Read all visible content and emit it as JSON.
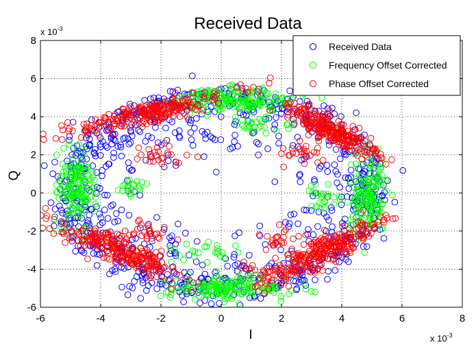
{
  "chart_data": {
    "type": "scatter",
    "title": "Received Data",
    "xlabel": "I",
    "ylabel": "Q",
    "x_multiplier": "x 10",
    "y_multiplier": "x 10",
    "multiplier_exponent": "-3",
    "xlim": [
      -6,
      8
    ],
    "ylim": [
      -6,
      8
    ],
    "xticks": [
      "-6",
      "-4",
      "-2",
      "0",
      "2",
      "4",
      "6",
      "8"
    ],
    "yticks": [
      "-6",
      "-4",
      "-2",
      "0",
      "2",
      "4",
      "6",
      "8"
    ],
    "grid": true,
    "legend_position": "top-right",
    "marker": "open-circle",
    "series": [
      {
        "name": "Received Data",
        "color": "#0000ff",
        "clusters": [
          {
            "shape": "ring",
            "cx": 0,
            "cy": 0,
            "rx": 5.0,
            "ry": 5.0,
            "spread": 0.45,
            "count": 700
          },
          {
            "shape": "ring",
            "cx": 0,
            "cy": 0,
            "rx": 3.8,
            "ry": 3.4,
            "spread": 0.7,
            "count": 220
          }
        ]
      },
      {
        "name": "Frequency Offset Corrected",
        "color": "#00ff00",
        "clusters": [
          {
            "shape": "blob",
            "cx": 0.5,
            "cy": 4.9,
            "sx": 1.0,
            "sy": 0.3,
            "angle": 0,
            "count": 170
          },
          {
            "shape": "blob",
            "cx": 0.2,
            "cy": -5.0,
            "sx": 1.0,
            "sy": 0.3,
            "angle": 0,
            "count": 170
          },
          {
            "shape": "blob",
            "cx": -4.8,
            "cy": 0.3,
            "sx": 0.3,
            "sy": 1.0,
            "angle": 0,
            "count": 150
          },
          {
            "shape": "blob",
            "cx": 4.9,
            "cy": -0.1,
            "sx": 0.3,
            "sy": 1.0,
            "angle": 0,
            "count": 150
          },
          {
            "shape": "blob",
            "cx": 1.2,
            "cy": 3.5,
            "sx": 0.6,
            "sy": 0.25,
            "angle": 0,
            "count": 30
          },
          {
            "shape": "blob",
            "cx": -3.0,
            "cy": 0.3,
            "sx": 0.3,
            "sy": 0.3,
            "angle": 0,
            "count": 20
          },
          {
            "shape": "blob",
            "cx": -0.5,
            "cy": -3.2,
            "sx": 0.6,
            "sy": 0.3,
            "angle": 0,
            "count": 25
          },
          {
            "shape": "blob",
            "cx": 3.4,
            "cy": -0.2,
            "sx": 0.4,
            "sy": 0.4,
            "angle": 0,
            "count": 25
          }
        ]
      },
      {
        "name": "Phase Offset Corrected",
        "color": "#ff0000",
        "clusters": [
          {
            "shape": "blob",
            "cx": -2.4,
            "cy": 4.2,
            "sx": 1.4,
            "sy": 0.25,
            "angle": 20,
            "count": 240
          },
          {
            "shape": "blob",
            "cx": 3.6,
            "cy": 3.3,
            "sx": 1.1,
            "sy": 0.3,
            "angle": -40,
            "count": 240
          },
          {
            "shape": "blob",
            "cx": -3.4,
            "cy": -3.0,
            "sx": 1.2,
            "sy": 0.3,
            "angle": -35,
            "count": 240
          },
          {
            "shape": "blob",
            "cx": 3.5,
            "cy": -3.0,
            "sx": 1.2,
            "sy": 0.3,
            "angle": 40,
            "count": 240
          },
          {
            "shape": "blob",
            "cx": -2.2,
            "cy": 2.0,
            "sx": 0.45,
            "sy": 0.25,
            "angle": 0,
            "count": 25
          },
          {
            "shape": "blob",
            "cx": 2.6,
            "cy": 2.1,
            "sx": 0.4,
            "sy": 0.3,
            "angle": 0,
            "count": 25
          },
          {
            "shape": "blob",
            "cx": -2.5,
            "cy": -2.0,
            "sx": 0.45,
            "sy": 0.3,
            "angle": 0,
            "count": 25
          },
          {
            "shape": "blob",
            "cx": 2.2,
            "cy": -2.4,
            "sx": 0.45,
            "sy": 0.3,
            "angle": 0,
            "count": 25
          },
          {
            "shape": "blob",
            "cx": 1.8,
            "cy": -4.0,
            "sx": 0.6,
            "sy": 0.2,
            "angle": 0,
            "count": 30
          }
        ]
      }
    ]
  }
}
